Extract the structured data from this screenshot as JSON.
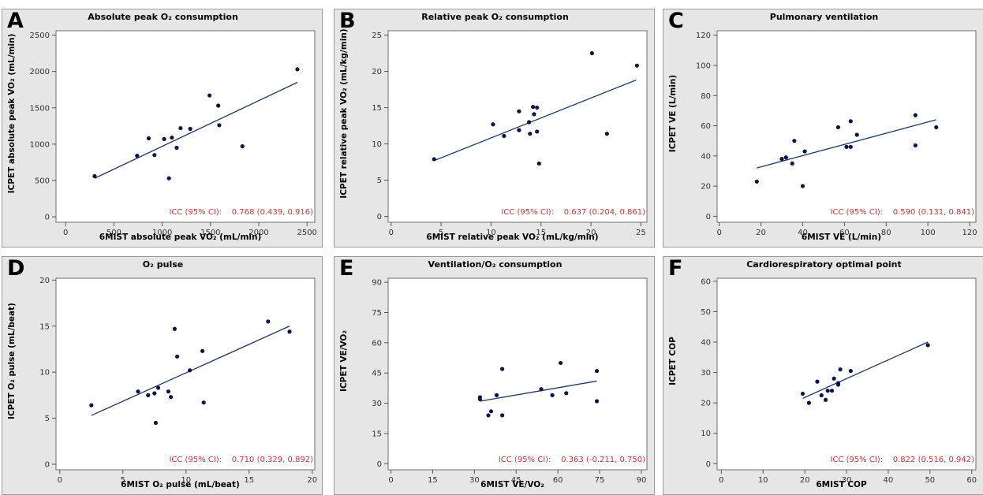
{
  "chart_data": [
    {
      "id": "A",
      "type": "scatter",
      "title": "Absolute peak O₂ consumption",
      "xlabel": "6MIST absolute peak VO₂ (mL/min)",
      "ylabel": "ICPET absolute peak VO₂ (mL/min)",
      "xlim": [
        -100,
        2580
      ],
      "ylim": [
        -75,
        2560
      ],
      "xticks": [
        0,
        500,
        1000,
        1500,
        2000,
        2500
      ],
      "yticks": [
        0,
        500,
        1000,
        1500,
        2000,
        2500
      ],
      "x": [
        300,
        740,
        860,
        920,
        1020,
        1070,
        1100,
        1150,
        1190,
        1290,
        1490,
        1580,
        1590,
        1830,
        2400
      ],
      "y": [
        560,
        840,
        1080,
        850,
        1070,
        530,
        1090,
        950,
        1220,
        1210,
        1670,
        1530,
        1260,
        970,
        2030
      ],
      "fit": [
        [
          300,
          530
        ],
        [
          2400,
          1850
        ]
      ],
      "icc": {
        "label": "ICC (95% CI):",
        "value": "0.768 (0.439, 0.916)"
      }
    },
    {
      "id": "B",
      "type": "scatter",
      "title": "Relative peak O₂ consumption",
      "xlabel": "6MIST relative peak VO₂ (mL/kg/min)",
      "ylabel": "ICPET relative peak VO₂ (mL/kg/min)",
      "xlim": [
        -0.3,
        25.6
      ],
      "ylim": [
        -0.8,
        25.6
      ],
      "xticks": [
        0,
        5,
        10,
        15,
        20,
        25
      ],
      "yticks": [
        0,
        5,
        10,
        15,
        20,
        25
      ],
      "x": [
        4.3,
        10.2,
        11.3,
        12.8,
        12.8,
        13.8,
        13.9,
        14.2,
        14.3,
        14.6,
        14.6,
        14.8,
        20.1,
        21.6,
        24.6
      ],
      "y": [
        7.9,
        12.7,
        11.1,
        14.5,
        11.9,
        13.0,
        11.4,
        15.1,
        14.1,
        15.0,
        11.7,
        7.3,
        22.5,
        11.4,
        20.8
      ],
      "fit": [
        [
          4.3,
          7.7
        ],
        [
          24.5,
          18.8
        ]
      ],
      "icc": {
        "label": "ICC (95% CI):",
        "value": "0.637 (0.204, 0.861)"
      }
    },
    {
      "id": "C",
      "type": "scatter",
      "title": "Pulmonary ventilation",
      "xlabel": "6MIST VE (L/min)",
      "ylabel": "ICPET VE (L/min)",
      "xlim": [
        -1,
        123
      ],
      "ylim": [
        -4,
        123
      ],
      "xticks": [
        0,
        20,
        40,
        60,
        80,
        100,
        120
      ],
      "yticks": [
        0,
        20,
        40,
        60,
        80,
        100,
        120
      ],
      "x": [
        18,
        30,
        32,
        35,
        36,
        40,
        41,
        57,
        61,
        63,
        63,
        66,
        94,
        94,
        104
      ],
      "y": [
        23,
        38,
        39,
        35,
        50,
        20,
        43,
        59,
        46,
        46,
        63,
        54,
        67,
        47,
        59
      ],
      "fit": [
        [
          18,
          32
        ],
        [
          104,
          64
        ]
      ],
      "icc": {
        "label": "ICC (95% CI):",
        "value": "0.590 (0.131, 0.841)"
      }
    },
    {
      "id": "D",
      "type": "scatter",
      "title": "O₂ pulse",
      "xlabel": "6MIST O₂ pulse (mL/beat)",
      "ylabel": "ICPET O₂ pulse (mL/beat)",
      "xlim": [
        -0.3,
        20.2
      ],
      "ylim": [
        -0.6,
        20.2
      ],
      "xticks": [
        0,
        5,
        10,
        15,
        20
      ],
      "yticks": [
        0,
        5,
        10,
        15,
        20
      ],
      "x": [
        2.5,
        6.2,
        7.0,
        7.5,
        7.6,
        7.8,
        8.6,
        8.8,
        9.1,
        9.3,
        10.3,
        11.3,
        11.4,
        16.5,
        18.2
      ],
      "y": [
        6.4,
        7.9,
        7.5,
        7.7,
        4.5,
        8.3,
        7.9,
        7.3,
        14.7,
        11.7,
        10.2,
        12.3,
        6.7,
        15.5,
        14.4
      ],
      "fit": [
        [
          2.5,
          5.3
        ],
        [
          18.2,
          15.0
        ]
      ],
      "icc": {
        "label": "ICC (95% CI):",
        "value": "0.710 (0.329, 0.892)"
      }
    },
    {
      "id": "E",
      "type": "scatter",
      "title": "Ventilation/O₂ consumption",
      "xlabel": "6MIST VE/VO₂",
      "ylabel": "ICPET VE/VO₂",
      "xlim": [
        -1,
        92
      ],
      "ylim": [
        -3,
        92
      ],
      "xticks": [
        0,
        15,
        30,
        45,
        60,
        75,
        90
      ],
      "yticks": [
        0,
        15,
        30,
        45,
        60,
        75,
        90
      ],
      "x": [
        32,
        32,
        35,
        36,
        38,
        40,
        40,
        54,
        58,
        61,
        63,
        74,
        74
      ],
      "y": [
        32,
        33,
        24,
        26,
        34,
        24,
        47,
        37,
        34,
        50,
        35,
        46,
        31
      ],
      "fit": [
        [
          32,
          31
        ],
        [
          74,
          41
        ]
      ],
      "icc": {
        "label": "ICC (95% CI):",
        "value": "0.363 (-0.211, 0.750)"
      }
    },
    {
      "id": "F",
      "type": "scatter",
      "title": "Cardiorespiratory optimal point",
      "xlabel": "6MIST COP",
      "ylabel": "ICPET COP",
      "xlim": [
        -1,
        61
      ],
      "ylim": [
        -2,
        61
      ],
      "xticks": [
        0,
        10,
        20,
        30,
        40,
        50,
        60
      ],
      "yticks": [
        0,
        10,
        20,
        30,
        40,
        50,
        60
      ],
      "x": [
        19.5,
        21,
        23,
        24,
        25,
        25.5,
        26.5,
        27,
        28,
        28,
        28.5,
        31,
        49.5
      ],
      "y": [
        23,
        20,
        27,
        22.5,
        21,
        24,
        24,
        28,
        26,
        26.5,
        31,
        30.5,
        39
      ],
      "fit": [
        [
          19.5,
          21.5
        ],
        [
          49.5,
          40
        ]
      ],
      "icc": {
        "label": "ICC (95% CI):",
        "value": "0.822 (0.516, 0.942)"
      }
    }
  ]
}
